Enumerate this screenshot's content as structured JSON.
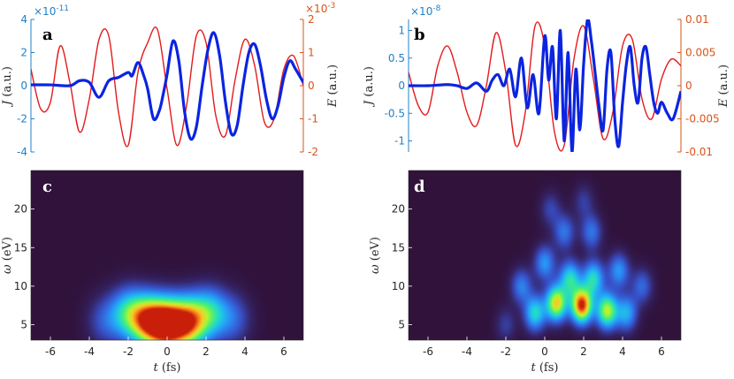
{
  "figure": {
    "colors": {
      "current": "#0b24e0",
      "field": "#e31a1c",
      "left_axis": "#2080c8",
      "right_axis": "#d95319",
      "axis": "#262626"
    }
  },
  "chart_data": [
    {
      "id": "a",
      "type": "line",
      "panel_label": "a",
      "left_axis": {
        "label_var": "J",
        "label_unit": "(a.u.)",
        "range": [
          -4,
          4
        ],
        "ticks": [
          -4,
          -2,
          0,
          2,
          4
        ],
        "tick_labels": [
          "-4",
          "-2",
          "0",
          "2",
          "4"
        ],
        "multiplier": "×10",
        "exponent": "-11"
      },
      "right_axis": {
        "label_var": "E",
        "label_unit": "(a.u.)",
        "range": [
          -2,
          2
        ],
        "ticks": [
          -2,
          -1,
          0,
          1,
          2
        ],
        "tick_labels": [
          "-2",
          "-1",
          "0",
          "1",
          "2"
        ],
        "multiplier": "×10",
        "exponent": "-3"
      },
      "xlim": [
        -7,
        7
      ],
      "series": [
        {
          "name": "J",
          "axis": "left",
          "x": [
            -7,
            -6,
            -5,
            -4.5,
            -4,
            -3.5,
            -3,
            -2.5,
            -2,
            -1.8,
            -1.5,
            -1.2,
            -1,
            -0.7,
            -0.4,
            -0.2,
            0,
            0.3,
            0.6,
            0.9,
            1.2,
            1.5,
            1.8,
            2.1,
            2.4,
            2.7,
            3,
            3.3,
            3.6,
            3.9,
            4.2,
            4.5,
            4.8,
            5.1,
            5.4,
            5.7,
            6,
            6.3,
            6.6,
            7
          ],
          "values": [
            0.05,
            0.05,
            0.0,
            0.3,
            0.2,
            -0.7,
            0.3,
            0.5,
            0.8,
            0.6,
            1.4,
            0.6,
            -0.2,
            -2.0,
            -1.5,
            -0.5,
            0.7,
            2.7,
            1.5,
            -1.6,
            -3.2,
            -2.5,
            0.0,
            2.2,
            3.2,
            1.8,
            -1.0,
            -2.9,
            -2.4,
            0.0,
            2.0,
            2.5,
            1.2,
            -0.8,
            -2.0,
            -1.2,
            0.5,
            1.5,
            1.0,
            0.2
          ]
        },
        {
          "name": "E",
          "axis": "right",
          "x": [
            -7,
            -6.5,
            -6,
            -5.5,
            -5,
            -4.5,
            -4,
            -3.5,
            -3,
            -2.5,
            -2,
            -1.5,
            -1,
            -0.5,
            0,
            0.5,
            1,
            1.5,
            2,
            2.5,
            3,
            3.5,
            4,
            4.5,
            5,
            5.5,
            6,
            6.5,
            7
          ],
          "values": [
            0.5,
            -0.7,
            -0.5,
            1.2,
            0.1,
            -1.4,
            -0.4,
            1.4,
            1.5,
            -0.8,
            -1.8,
            0.4,
            1.3,
            1.7,
            -0.1,
            -1.8,
            -0.6,
            1.5,
            1.3,
            -0.9,
            -1.5,
            0.2,
            1.4,
            0.6,
            -1.1,
            -1.0,
            0.5,
            0.9,
            0.0
          ]
        }
      ]
    },
    {
      "id": "b",
      "type": "line",
      "panel_label": "b",
      "left_axis": {
        "label_var": "J",
        "label_unit": "(a.u.)",
        "range": [
          -1.2,
          1.2
        ],
        "ticks": [
          -1,
          -0.5,
          0,
          0.5,
          1
        ],
        "tick_labels": [
          "-1",
          "-0.5",
          "0",
          "0.5",
          "1"
        ],
        "multiplier": "×10",
        "exponent": "-8"
      },
      "right_axis": {
        "label_var": "E",
        "label_unit": "(a.u.)",
        "range": [
          -0.01,
          0.01
        ],
        "ticks": [
          -0.01,
          -0.005,
          0,
          0.005,
          0.01
        ],
        "tick_labels": [
          "-0.01",
          "-0.005",
          "0",
          "0.005",
          "0.01"
        ]
      },
      "xlim": [
        -7,
        7
      ],
      "series": [
        {
          "name": "J",
          "axis": "left",
          "x": [
            -7,
            -6,
            -5,
            -4.5,
            -4,
            -3.5,
            -3,
            -2.7,
            -2.4,
            -2.1,
            -1.8,
            -1.5,
            -1.2,
            -0.9,
            -0.6,
            -0.3,
            0,
            0.2,
            0.4,
            0.6,
            0.8,
            1.0,
            1.2,
            1.4,
            1.6,
            1.8,
            2.0,
            2.2,
            2.4,
            2.6,
            2.8,
            3.0,
            3.2,
            3.4,
            3.6,
            3.8,
            4.0,
            4.2,
            4.4,
            4.6,
            4.8,
            5.0,
            5.2,
            5.4,
            5.6,
            5.8,
            6.0,
            6.3,
            6.6,
            7
          ],
          "values": [
            0.0,
            0.0,
            0.02,
            0.0,
            -0.05,
            0.05,
            -0.1,
            0.1,
            0.2,
            0.0,
            0.3,
            -0.2,
            0.5,
            -0.4,
            0.2,
            -0.5,
            0.9,
            0.1,
            0.7,
            -0.6,
            1.0,
            -1.0,
            0.6,
            -1.2,
            0.3,
            -0.8,
            0.4,
            1.2,
            0.8,
            0.2,
            -0.4,
            -0.8,
            0.3,
            0.6,
            -0.6,
            -1.1,
            -0.3,
            0.4,
            0.7,
            0.0,
            -0.3,
            0.5,
            0.7,
            0.2,
            -0.3,
            -0.5,
            -0.3,
            -0.5,
            -0.6,
            -0.1
          ]
        },
        {
          "name": "E",
          "axis": "right",
          "x": [
            -7,
            -6.5,
            -6,
            -5.5,
            -5,
            -4.5,
            -4,
            -3.5,
            -3,
            -2.5,
            -2,
            -1.5,
            -1,
            -0.5,
            0,
            0.5,
            1,
            1.5,
            2,
            2.5,
            3,
            3.5,
            4,
            4.5,
            5,
            5.5,
            6,
            6.5,
            7
          ],
          "values": [
            0.002,
            -0.003,
            -0.004,
            0.003,
            0.006,
            0.002,
            -0.004,
            -0.006,
            0.0,
            0.008,
            0.002,
            -0.009,
            -0.004,
            0.009,
            0.006,
            -0.007,
            -0.009,
            0.004,
            0.009,
            0.001,
            -0.008,
            -0.004,
            0.006,
            0.007,
            -0.002,
            -0.005,
            0.001,
            0.004,
            0.003
          ]
        }
      ]
    },
    {
      "id": "c",
      "type": "heatmap",
      "panel_label": "c",
      "xlim": [
        -7,
        7
      ],
      "ylim": [
        3,
        25
      ],
      "ylabel_var": "ω",
      "ylabel_unit": "(eV)",
      "xlabel_var": "t",
      "xlabel_unit": "(fs)",
      "yticks": [
        5,
        10,
        15,
        20
      ],
      "ytick_labels": [
        "5",
        "10",
        "15",
        "20"
      ],
      "xticks": [
        -6,
        -4,
        -2,
        0,
        2,
        4,
        6
      ],
      "xtick_labels": [
        "-6",
        "-4",
        "-2",
        "0",
        "2",
        "4",
        "6"
      ],
      "intensity_peaks": [
        {
          "t": 0.0,
          "omega": 5.0,
          "amp": 1.0
        },
        {
          "t": -1.0,
          "omega": 5.5,
          "amp": 0.78
        },
        {
          "t": 1.1,
          "omega": 5.3,
          "amp": 0.8
        },
        {
          "t": -2.0,
          "omega": 6.5,
          "amp": 0.45
        },
        {
          "t": 2.2,
          "omega": 6.5,
          "amp": 0.45
        },
        {
          "t": -3.2,
          "omega": 5.5,
          "amp": 0.2
        },
        {
          "t": 3.4,
          "omega": 5.8,
          "amp": 0.22
        }
      ]
    },
    {
      "id": "d",
      "type": "heatmap",
      "panel_label": "d",
      "xlim": [
        -7,
        7
      ],
      "ylim": [
        3,
        25
      ],
      "ylabel_var": "ω",
      "ylabel_unit": "(eV)",
      "xlabel_var": "t",
      "xlabel_unit": "(fs)",
      "yticks": [
        5,
        10,
        15,
        20
      ],
      "ytick_labels": [
        "5",
        "10",
        "15",
        "20"
      ],
      "xticks": [
        -6,
        -4,
        -2,
        0,
        2,
        4,
        6
      ],
      "xtick_labels": [
        "-6",
        "-4",
        "-2",
        "0",
        "2",
        "4",
        "6"
      ],
      "intensity_peaks": [
        {
          "t": 1.9,
          "omega": 7.5,
          "amp": 1.0
        },
        {
          "t": 0.6,
          "omega": 7.8,
          "amp": 0.8
        },
        {
          "t": 3.2,
          "omega": 6.8,
          "amp": 0.72
        },
        {
          "t": -0.5,
          "omega": 6.5,
          "amp": 0.5
        },
        {
          "t": 4.2,
          "omega": 6.5,
          "amp": 0.4
        },
        {
          "t": 1.3,
          "omega": 11.0,
          "amp": 0.5
        },
        {
          "t": 2.5,
          "omega": 11.0,
          "amp": 0.5
        },
        {
          "t": 0.0,
          "omega": 13.0,
          "amp": 0.35
        },
        {
          "t": 3.8,
          "omega": 12.0,
          "amp": 0.35
        },
        {
          "t": -1.2,
          "omega": 10.0,
          "amp": 0.3
        },
        {
          "t": 1.0,
          "omega": 17.0,
          "amp": 0.28
        },
        {
          "t": 2.4,
          "omega": 17.0,
          "amp": 0.28
        },
        {
          "t": 5.0,
          "omega": 10.0,
          "amp": 0.25
        },
        {
          "t": 0.3,
          "omega": 20.0,
          "amp": 0.17
        },
        {
          "t": 2.0,
          "omega": 21.0,
          "amp": 0.15
        },
        {
          "t": -2.0,
          "omega": 5.0,
          "amp": 0.15
        }
      ]
    }
  ]
}
